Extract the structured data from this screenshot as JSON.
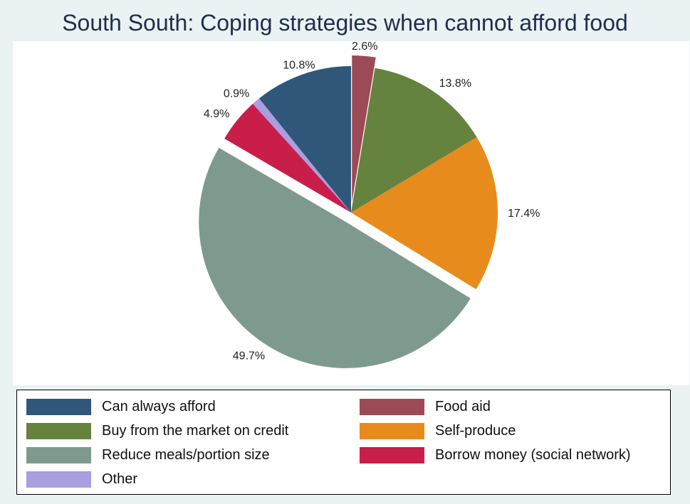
{
  "chart_data": {
    "type": "pie",
    "title": "South South: Coping strategies when cannot afford food",
    "slices": [
      {
        "name": "Self-produce",
        "value": 17.4,
        "label": "17.4%",
        "color": "#e88b1d"
      },
      {
        "name": "Reduce meals/portion size",
        "value": 49.7,
        "label": "49.7%",
        "color": "#7e9a8e"
      },
      {
        "name": "Borrow money (social network)",
        "value": 4.9,
        "label": "4.9%",
        "color": "#c91d4a"
      },
      {
        "name": "Other",
        "value": 0.9,
        "label": "0.9%",
        "color": "#a89ee0"
      },
      {
        "name": "Can always afford",
        "value": 10.8,
        "label": "10.8%",
        "color": "#305779"
      },
      {
        "name": "Food aid",
        "value": 2.6,
        "label": "2.6%",
        "color": "#9c4a55"
      },
      {
        "name": "Buy from the market on credit",
        "value": 13.8,
        "label": "13.8%",
        "color": "#65833e"
      }
    ],
    "exploded": [
      "Reduce meals/portion size",
      "Food aid"
    ],
    "legend": {
      "placement": "bottom",
      "entries": [
        "Can always afford",
        "Food aid",
        "Buy from the market on credit",
        "Self-produce",
        "Reduce meals/portion size",
        "Borrow money (social network)",
        "Other"
      ]
    }
  }
}
